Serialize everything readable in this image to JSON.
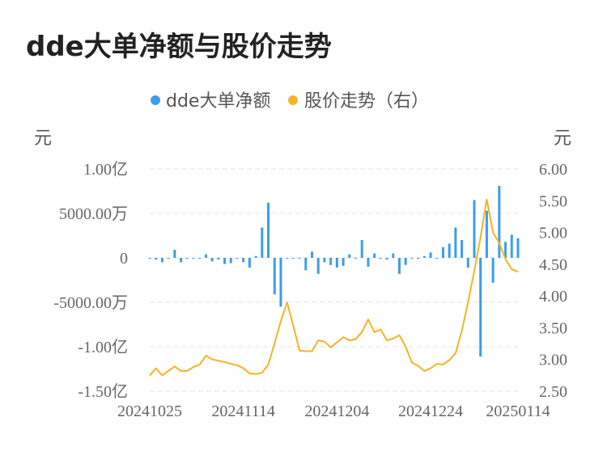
{
  "title": "dde大单净额与股价走势",
  "legend": [
    {
      "label": "dde大单净额",
      "color": "#3b9ee8"
    },
    {
      "label": "股价走势（右）",
      "color": "#f5b324"
    }
  ],
  "axis_unit_left": "元",
  "axis_unit_right": "元",
  "chart_data": {
    "type": "bar+line",
    "x_tick_labels": [
      "20241025",
      "20241114",
      "20241204",
      "20241224",
      "20250114"
    ],
    "y_left": {
      "tick_labels": [
        "1.00亿",
        "5000.00万",
        "0",
        "-5000.00万",
        "-1.00亿",
        "-1.50亿"
      ],
      "tick_values": [
        100000000,
        50000000,
        0,
        -50000000,
        -100000000,
        -150000000
      ],
      "range": [
        -150000000,
        100000000
      ]
    },
    "y_right": {
      "tick_labels": [
        "6.00",
        "5.50",
        "5.00",
        "4.50",
        "4.00",
        "3.50",
        "3.00",
        "2.50"
      ],
      "tick_values": [
        6.0,
        5.5,
        5.0,
        4.5,
        4.0,
        3.5,
        3.0,
        2.5
      ],
      "range": [
        2.5,
        6.0
      ]
    },
    "series": [
      {
        "name": "dde大单净额",
        "type": "bar",
        "color": "#3b9ee8",
        "values": [
          0,
          -2000000,
          -5000000,
          0,
          9000000,
          -5000000,
          -1000000,
          -1000000,
          -1000000,
          4000000,
          -4000000,
          -2000000,
          -7000000,
          -6000000,
          -1000000,
          -5000000,
          -11000000,
          2000000,
          34000000,
          62000000,
          -41000000,
          -55000000,
          0,
          0,
          0,
          -14000000,
          7000000,
          -18000000,
          -5000000,
          -8000000,
          -11000000,
          -9000000,
          4000000,
          -1000000,
          20000000,
          -10000000,
          5000000,
          0,
          -2000000,
          5000000,
          -18000000,
          -8000000,
          0,
          -1000000,
          2000000,
          6000000,
          0,
          12000000,
          16000000,
          34000000,
          20000000,
          -11000000,
          65000000,
          -111000000,
          53000000,
          -28000000,
          81000000,
          18000000,
          26000000,
          22000000
        ]
      },
      {
        "name": "股价走势（右）",
        "type": "line",
        "axis": "right",
        "color": "#f5b324",
        "values": [
          2.75,
          2.86,
          2.75,
          2.82,
          2.89,
          2.82,
          2.82,
          2.88,
          2.92,
          3.06,
          3.0,
          2.98,
          2.96,
          2.93,
          2.91,
          2.86,
          2.78,
          2.77,
          2.79,
          2.92,
          3.25,
          3.6,
          3.9,
          3.53,
          3.14,
          3.13,
          3.13,
          3.3,
          3.28,
          3.19,
          3.27,
          3.35,
          3.3,
          3.32,
          3.43,
          3.63,
          3.43,
          3.47,
          3.3,
          3.33,
          3.38,
          3.2,
          2.95,
          2.9,
          2.82,
          2.86,
          2.93,
          2.92,
          2.99,
          3.1,
          3.45,
          3.9,
          4.39,
          4.92,
          5.52,
          5.0,
          4.83,
          4.58,
          4.42,
          4.38
        ]
      }
    ],
    "grid": true,
    "legend_position": "top-center"
  }
}
